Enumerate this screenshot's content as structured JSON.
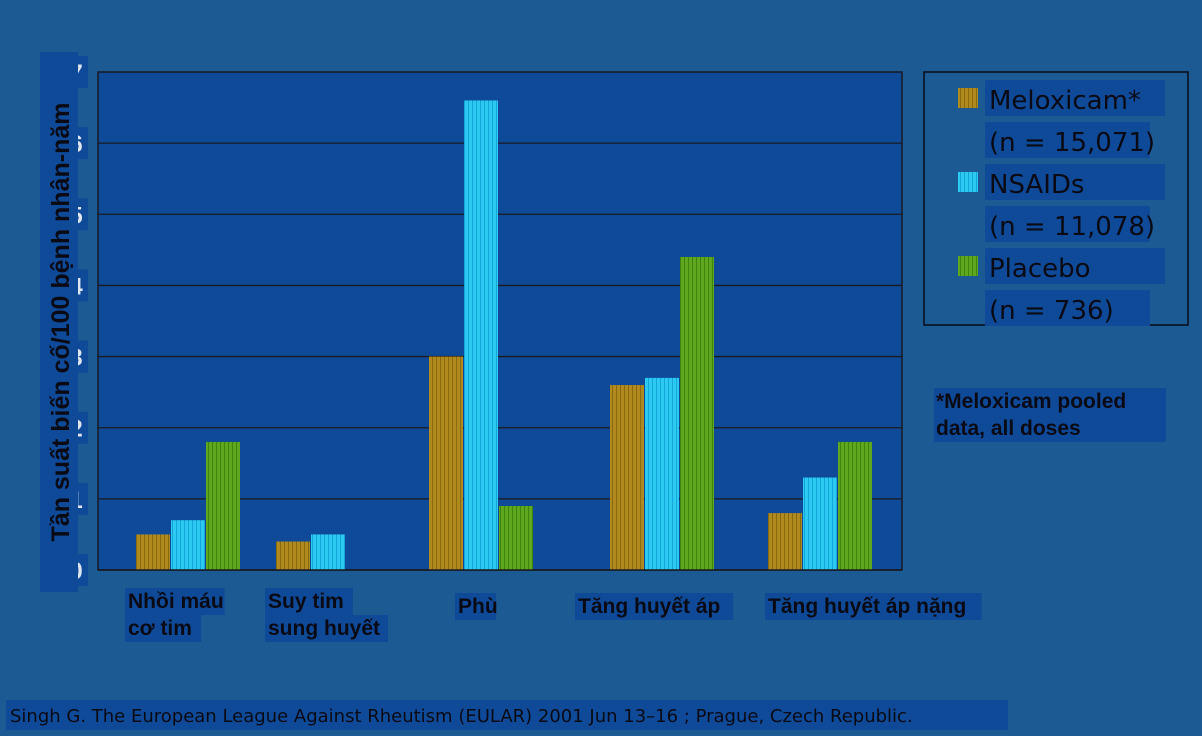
{
  "chart_data": {
    "type": "bar",
    "ylabel": "Tần suất biến cố/100 bệnh nhân-năm",
    "ylim": [
      0,
      7
    ],
    "yticks": [
      "0",
      "1",
      "2",
      "3",
      "4",
      "5",
      "6",
      "7"
    ],
    "grid": true,
    "legend_position": "right",
    "categories": [
      [
        "Nhồi máu",
        "cơ tim"
      ],
      [
        "Suy tim",
        "sung huyết"
      ],
      [
        "Phù"
      ],
      [
        "Tăng huyết áp"
      ],
      [
        "Tăng huyết áp nặng"
      ]
    ],
    "series": [
      {
        "name": "Meloxicam*",
        "n_label": "(n = 15,071)",
        "color": "#b08a1e",
        "values": [
          0.5,
          0.4,
          3.0,
          2.6,
          0.8
        ]
      },
      {
        "name": "NSAIDs",
        "n_label": "(n = 11,078)",
        "color": "#29c8ee",
        "values": [
          0.7,
          0.5,
          6.6,
          2.7,
          1.3
        ]
      },
      {
        "name": "Placebo",
        "n_label": "(n = 736)",
        "color": "#5aa51c",
        "values": [
          1.8,
          null,
          0.9,
          4.4,
          1.8
        ]
      }
    ]
  },
  "footnote": [
    "*Meloxicam pooled",
    "data, all doses"
  ],
  "citation": "Singh G. The European League Against Rheutism (EULAR) 2001 Jun 13–16 ; Prague, Czech Republic.",
  "colors": {
    "background": "#1c5a94",
    "plot_area": "#0f4a98",
    "text_highlight": "#0f4a98",
    "gridline": "#1a1a22"
  }
}
